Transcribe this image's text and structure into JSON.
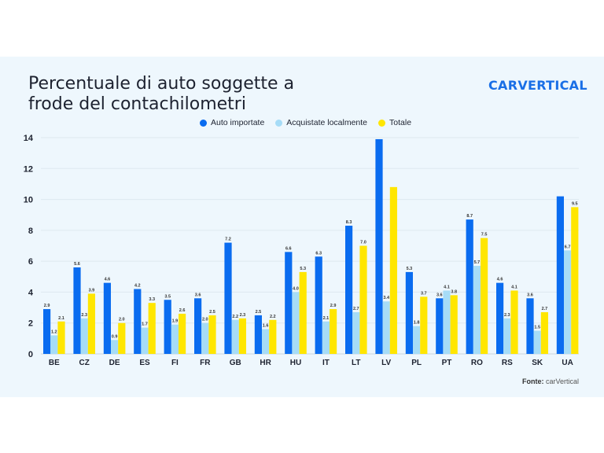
{
  "chart_data": {
    "type": "bar",
    "title": [
      "Percentuale di auto soggette a",
      "frode del contachilometri"
    ],
    "categories": [
      "BE",
      "CZ",
      "DE",
      "ES",
      "FI",
      "FR",
      "GB",
      "HR",
      "HU",
      "IT",
      "LT",
      "LV",
      "PL",
      "PT",
      "RO",
      "RS",
      "SK",
      "UA"
    ],
    "series": [
      {
        "name": "Auto importate",
        "color": "#0a6cf0",
        "values": [
          2.9,
          5.6,
          4.6,
          4.2,
          3.5,
          3.6,
          7.2,
          2.5,
          6.6,
          6.3,
          8.3,
          13.9,
          5.3,
          3.6,
          8.7,
          4.6,
          3.6,
          10.2
        ],
        "labeled": [
          true,
          true,
          true,
          true,
          true,
          true,
          true,
          true,
          true,
          true,
          true,
          false,
          true,
          true,
          true,
          true,
          true,
          false
        ]
      },
      {
        "name": "Acquistate localmente",
        "color": "#a6dcf7",
        "values": [
          1.2,
          2.3,
          0.9,
          1.7,
          1.9,
          2.0,
          2.2,
          1.6,
          4.0,
          2.1,
          2.7,
          3.4,
          1.8,
          4.1,
          5.7,
          2.3,
          1.5,
          6.7
        ],
        "labeled": [
          true,
          true,
          true,
          true,
          true,
          true,
          true,
          true,
          true,
          true,
          true,
          true,
          true,
          true,
          true,
          true,
          true,
          true
        ]
      },
      {
        "name": "Totale",
        "color": "#ffe600",
        "values": [
          2.1,
          3.9,
          2.0,
          3.3,
          2.6,
          2.5,
          2.3,
          2.2,
          5.3,
          2.9,
          7.0,
          10.8,
          3.7,
          3.8,
          7.5,
          4.1,
          2.7,
          9.5
        ],
        "labeled": [
          true,
          true,
          true,
          true,
          true,
          true,
          true,
          true,
          true,
          true,
          true,
          false,
          true,
          true,
          true,
          true,
          true,
          true
        ]
      }
    ],
    "ylim": [
      0,
      14
    ],
    "yticks": [
      0,
      2,
      4,
      6,
      8,
      10,
      12,
      14
    ],
    "grid": true,
    "legend": "top-center",
    "xlabel": "",
    "ylabel": ""
  },
  "brand": "CARVERTICAL",
  "source": {
    "label": "Fonte:",
    "value": "carVertical"
  }
}
